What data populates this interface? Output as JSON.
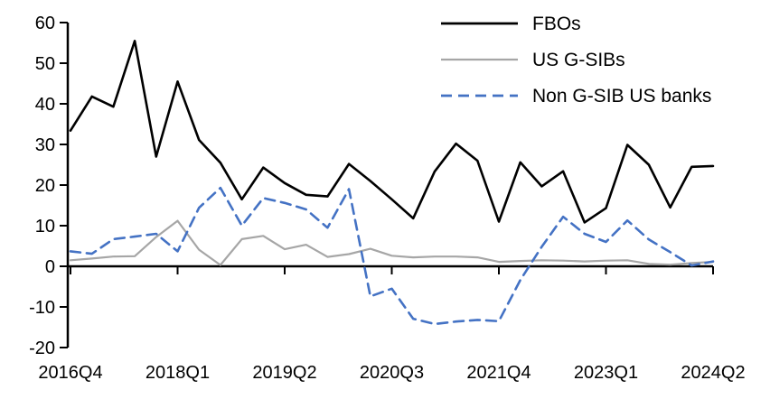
{
  "chart_data": {
    "type": "line",
    "title": "",
    "xlabel": "",
    "ylabel": "",
    "ylim": [
      -20,
      60
    ],
    "y_ticks": [
      60,
      50,
      40,
      30,
      20,
      10,
      0,
      -10,
      -20
    ],
    "x_tick_labels": [
      "2016Q4",
      "2018Q1",
      "2019Q2",
      "2020Q3",
      "2021Q4",
      "2023Q1",
      "2024Q2"
    ],
    "x_tick_indices": [
      0,
      5,
      10,
      15,
      20,
      25,
      30
    ],
    "grid": false,
    "legend_position": "top-right",
    "categories": [
      "2016Q4",
      "2017Q1",
      "2017Q2",
      "2017Q3",
      "2017Q4",
      "2018Q1",
      "2018Q2",
      "2018Q3",
      "2018Q4",
      "2019Q1",
      "2019Q2",
      "2019Q3",
      "2019Q4",
      "2020Q1",
      "2020Q2",
      "2020Q3",
      "2020Q4",
      "2021Q1",
      "2021Q2",
      "2021Q3",
      "2021Q4",
      "2022Q1",
      "2022Q2",
      "2022Q3",
      "2022Q4",
      "2023Q1",
      "2023Q2",
      "2023Q3",
      "2023Q4",
      "2024Q1",
      "2024Q2"
    ],
    "series": [
      {
        "name": "FBOs",
        "color": "#000000",
        "line_style": "solid",
        "values": [
          33.4,
          41.8,
          39.3,
          55.5,
          27.0,
          45.5,
          31.1,
          25.5,
          16.5,
          24.3,
          20.5,
          17.6,
          17.2,
          25.2,
          21.0,
          16.5,
          11.8,
          23.3,
          30.2,
          26.0,
          11.0,
          25.6,
          19.7,
          23.4,
          10.8,
          14.3,
          29.9,
          25.0,
          14.5,
          24.5,
          24.7
        ]
      },
      {
        "name": "US G-SIBs",
        "color": "#A6A6A6",
        "line_style": "solid",
        "values": [
          1.5,
          1.9,
          2.4,
          2.5,
          7.2,
          11.2,
          4.1,
          0.3,
          6.7,
          7.5,
          4.2,
          5.3,
          2.3,
          3.0,
          4.3,
          2.6,
          2.2,
          2.4,
          2.4,
          2.2,
          1.1,
          1.3,
          1.5,
          1.4,
          1.2,
          1.4,
          1.5,
          0.6,
          0.4,
          0.8,
          1.1
        ]
      },
      {
        "name": "Non G-SIB US banks",
        "color": "#4472C4",
        "line_style": "dashed",
        "values": [
          3.7,
          3.1,
          6.7,
          7.3,
          8.0,
          3.7,
          14.4,
          19.3,
          10.0,
          16.8,
          15.6,
          14.0,
          9.5,
          19.0,
          -7.4,
          -5.5,
          -12.9,
          -14.2,
          -13.6,
          -13.2,
          -13.5,
          -3.4,
          4.8,
          12.2,
          8.0,
          6.0,
          11.3,
          6.6,
          3.5,
          0.2,
          1.2
        ]
      }
    ]
  },
  "colors": {
    "background": "#FFFFFF",
    "axis": "#000000",
    "text": "#000000",
    "accent_blue": "#4472C4",
    "accent_gray": "#A6A6A6"
  }
}
